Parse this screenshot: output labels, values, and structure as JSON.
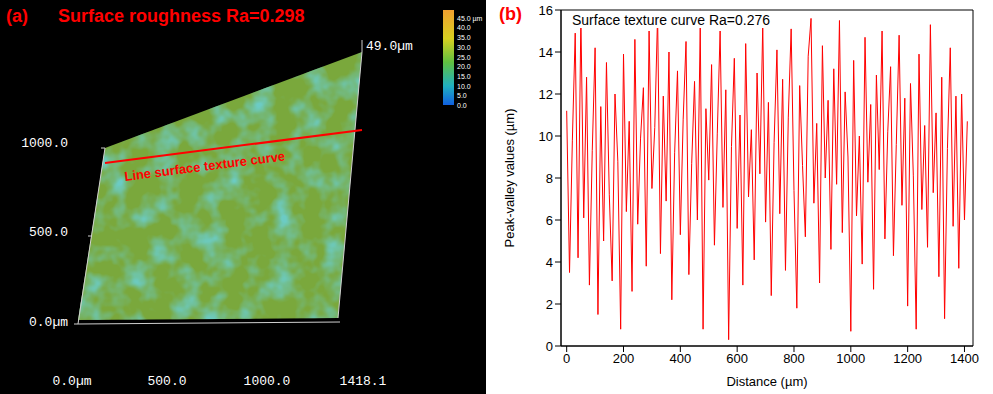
{
  "panel_a": {
    "panel_label": "(a)",
    "title": "Surface roughness Ra=0.298",
    "line_label": "Line surface texture curve",
    "x_axis_labels": [
      "0.0µm",
      "500.0",
      "1000.0",
      "1418.1"
    ],
    "y_axis_labels": [
      "1000.0",
      "500.0",
      "0.0µm"
    ],
    "z_axis_label": "49.0µm",
    "colorbar": {
      "range": [
        0,
        49
      ],
      "ticks": [
        {
          "value": 45,
          "label": "45.0 µm"
        },
        {
          "value": 40,
          "label": "40.0"
        },
        {
          "value": 35,
          "label": "35.0"
        },
        {
          "value": 30,
          "label": "30.0"
        },
        {
          "value": 25,
          "label": "25.0"
        },
        {
          "value": 20,
          "label": "20.0"
        },
        {
          "value": 15,
          "label": "15.0"
        },
        {
          "value": 10,
          "label": "10.0"
        },
        {
          "value": 5,
          "label": "5.0"
        },
        {
          "value": 0,
          "label": "0.0"
        }
      ]
    }
  },
  "chart_data": {
    "type": "line",
    "panel_label": "(b)",
    "title": "Surface texture curve Ra=0.276",
    "x_label": "Distance (µm)",
    "y_label": "Peak-valley values (µm)",
    "color": "#ff0000",
    "grid": false,
    "xlim": [
      -20,
      1430
    ],
    "xticks": [
      0,
      200,
      400,
      600,
      800,
      1000,
      1200,
      1400
    ],
    "ylim": [
      0,
      16
    ],
    "yticks": [
      0,
      2,
      4,
      6,
      8,
      10,
      12,
      14,
      16
    ],
    "x": [
      0,
      10,
      20,
      30,
      40,
      50,
      60,
      70,
      80,
      90,
      100,
      110,
      120,
      130,
      140,
      150,
      160,
      170,
      180,
      190,
      200,
      210,
      220,
      230,
      240,
      250,
      260,
      270,
      280,
      290,
      300,
      310,
      320,
      330,
      340,
      350,
      360,
      370,
      380,
      390,
      400,
      410,
      420,
      430,
      440,
      450,
      460,
      470,
      480,
      490,
      500,
      510,
      520,
      530,
      540,
      550,
      560,
      570,
      580,
      590,
      600,
      610,
      620,
      630,
      640,
      650,
      660,
      670,
      680,
      690,
      700,
      710,
      720,
      730,
      740,
      750,
      760,
      770,
      780,
      790,
      800,
      810,
      820,
      830,
      840,
      850,
      860,
      870,
      880,
      890,
      900,
      910,
      920,
      930,
      940,
      950,
      960,
      970,
      980,
      990,
      1000,
      1010,
      1020,
      1030,
      1040,
      1050,
      1060,
      1070,
      1080,
      1090,
      1100,
      1110,
      1120,
      1130,
      1140,
      1150,
      1160,
      1170,
      1180,
      1190,
      1200,
      1210,
      1220,
      1230,
      1240,
      1250,
      1260,
      1270,
      1280,
      1290,
      1300,
      1310,
      1320,
      1330,
      1340,
      1350,
      1360,
      1370,
      1380,
      1390,
      1400,
      1410
    ],
    "values": [
      11.2,
      3.5,
      9.8,
      14.9,
      4.2,
      15.7,
      6.1,
      12.8,
      2.9,
      9.3,
      14.2,
      1.5,
      11.4,
      5.0,
      13.5,
      7.2,
      3.1,
      12.0,
      8.8,
      0.8,
      13.9,
      6.4,
      10.7,
      2.6,
      14.6,
      5.8,
      9.9,
      12.3,
      3.8,
      15.0,
      7.5,
      10.4,
      15.8,
      4.4,
      11.9,
      6.9,
      14.0,
      2.2,
      9.2,
      13.1,
      5.3,
      10.8,
      14.5,
      3.4,
      8.7,
      12.6,
      6.0,
      15.2,
      0.8,
      11.3,
      7.9,
      13.4,
      4.8,
      10.1,
      15.0,
      6.6,
      12.2,
      0.3,
      9.5,
      13.7,
      5.6,
      11.0,
      2.9,
      14.4,
      7.1,
      10.3,
      4.1,
      13.0,
      8.2,
      15.3,
      5.9,
      11.6,
      2.4,
      9.7,
      14.1,
      6.3,
      12.7,
      3.6,
      10.9,
      15.1,
      7.4,
      1.8,
      12.4,
      8.6,
      5.2,
      13.8,
      15.6,
      6.8,
      10.6,
      3.0,
      14.3,
      8.0,
      11.7,
      4.6,
      13.2,
      7.7,
      15.5,
      5.4,
      12.1,
      9.0,
      0.7,
      13.6,
      6.2,
      10.0,
      3.9,
      14.7,
      7.8,
      11.5,
      2.7,
      12.9,
      8.4,
      15.0,
      5.1,
      10.2,
      13.3,
      4.3,
      9.6,
      14.8,
      6.7,
      11.8,
      1.9,
      12.5,
      8.1,
      0.8,
      13.9,
      6.5,
      10.5,
      4.7,
      15.3,
      7.3,
      11.1,
      3.3,
      12.8,
      1.3,
      9.4,
      14.2,
      5.7,
      11.9,
      3.7,
      12.0,
      6.0,
      10.7
    ]
  }
}
